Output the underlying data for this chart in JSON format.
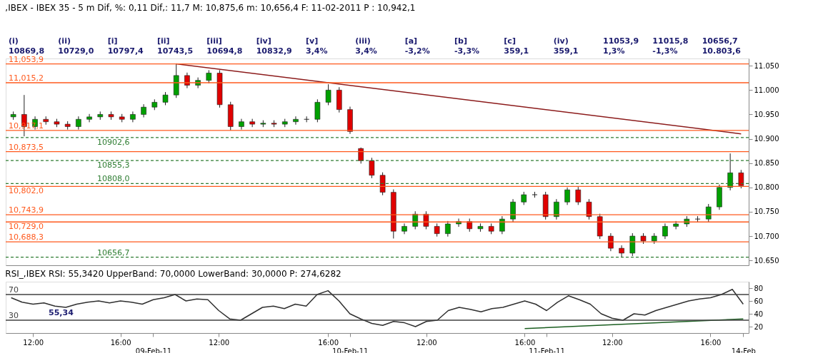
{
  "chart_data": [
    {
      "type": "candlestick",
      "title": ",IBEX - IBEX 35 -  5 m Dif, %: 0,11 Dif,: 11,7 M: 10,875,6 m: 10,656,4 F: 11-02-2011 P : 10,942,1",
      "categories": [
        null,
        null,
        null,
        null,
        null,
        null,
        null,
        null,
        null,
        null,
        null,
        null,
        null,
        null,
        null,
        null,
        null,
        null,
        null,
        null,
        null,
        null,
        null,
        null,
        null,
        null,
        null,
        null,
        null,
        null,
        null,
        null,
        null,
        null,
        null,
        null,
        null,
        null,
        null,
        null,
        null,
        null,
        null,
        null,
        null,
        null,
        null,
        null,
        null,
        null,
        null,
        null,
        null,
        null,
        null,
        null,
        null,
        null,
        null,
        null,
        null,
        null,
        null,
        null,
        null,
        null,
        null,
        null
      ],
      "ohlc": [
        [
          10945,
          10956,
          10939,
          10950
        ],
        [
          10950,
          10990,
          10905,
          10925
        ],
        [
          10925,
          10946,
          10919,
          10940
        ],
        [
          10940,
          10946,
          10929,
          10935
        ],
        [
          10935,
          10941,
          10924,
          10930
        ],
        [
          10930,
          10936,
          10919,
          10925
        ],
        [
          10925,
          10946,
          10919,
          10940
        ],
        [
          10940,
          10951,
          10934,
          10945
        ],
        [
          10945,
          10956,
          10939,
          10950
        ],
        [
          10950,
          10956,
          10939,
          10945
        ],
        [
          10945,
          10951,
          10934,
          10940
        ],
        [
          10940,
          10956,
          10934,
          10950
        ],
        [
          10950,
          10971,
          10944,
          10965
        ],
        [
          10965,
          10981,
          10959,
          10975
        ],
        [
          10975,
          10996,
          10969,
          10990
        ],
        [
          10990,
          11053.9,
          10984,
          11030
        ],
        [
          11030,
          11036,
          11004,
          11010
        ],
        [
          11010,
          11026,
          11004,
          11020
        ],
        [
          11020,
          11041,
          11014,
          11035
        ],
        [
          11035,
          11041,
          10964,
          10970
        ],
        [
          10970,
          10976,
          10917.1,
          10925
        ],
        [
          10925,
          10941,
          10919,
          10935
        ],
        [
          10935,
          10941,
          10924,
          10930
        ],
        [
          10930,
          10938,
          10924,
          10932
        ],
        [
          10932,
          10938,
          10924,
          10930
        ],
        [
          10930,
          10941,
          10924,
          10935
        ],
        [
          10935,
          10946,
          10929,
          10940
        ],
        [
          10940,
          10946,
          10934,
          10940
        ],
        [
          10940,
          10981,
          10934,
          10975
        ],
        [
          10975,
          11012,
          10969,
          11000
        ],
        [
          11000,
          11006,
          10954,
          10960
        ],
        [
          10960,
          10966,
          10910,
          10915
        ],
        [
          10880,
          10882,
          10849,
          10855
        ],
        [
          10855,
          10861,
          10819,
          10825
        ],
        [
          10825,
          10831,
          10784,
          10790
        ],
        [
          10790,
          10796,
          10695,
          10710
        ],
        [
          10710,
          10726,
          10704,
          10720
        ],
        [
          10720,
          10751,
          10714,
          10745
        ],
        [
          10745,
          10751,
          10714,
          10720
        ],
        [
          10720,
          10726,
          10699,
          10705
        ],
        [
          10705,
          10731,
          10699,
          10725
        ],
        [
          10725,
          10736,
          10719,
          10730
        ],
        [
          10730,
          10736,
          10709,
          10715
        ],
        [
          10715,
          10726,
          10709,
          10720
        ],
        [
          10720,
          10726,
          10704,
          10710
        ],
        [
          10710,
          10741,
          10704,
          10735
        ],
        [
          10735,
          10776,
          10729,
          10770
        ],
        [
          10770,
          10791,
          10764,
          10785
        ],
        [
          10785,
          10791,
          10779,
          10785
        ],
        [
          10785,
          10791,
          10734,
          10740
        ],
        [
          10740,
          10776,
          10734,
          10770
        ],
        [
          10770,
          10800,
          10764,
          10795
        ],
        [
          10795,
          10801,
          10764,
          10770
        ],
        [
          10770,
          10776,
          10734,
          10740
        ],
        [
          10740,
          10746,
          10694,
          10700
        ],
        [
          10700,
          10706,
          10669,
          10675
        ],
        [
          10675,
          10681,
          10656.7,
          10665
        ],
        [
          10665,
          10706,
          10659,
          10700
        ],
        [
          10700,
          10706,
          10684,
          10690
        ],
        [
          10690,
          10706,
          10684,
          10700
        ],
        [
          10700,
          10726,
          10694,
          10720
        ],
        [
          10720,
          10731,
          10714,
          10725
        ],
        [
          10725,
          10741,
          10719,
          10735
        ],
        [
          10735,
          10741,
          10729,
          10735
        ],
        [
          10735,
          10766,
          10729,
          10760
        ],
        [
          10760,
          10806,
          10754,
          10800
        ],
        [
          10800,
          10869.8,
          10794,
          10830
        ],
        [
          10830,
          10836,
          10798,
          10803.6
        ]
      ],
      "series": [
        {
          "type": "line",
          "color": "#8b1a1a",
          "values": [
            null,
            null,
            null,
            null,
            null,
            null,
            null,
            null,
            null,
            null,
            null,
            null,
            null,
            null,
            null,
            11053.9,
            null,
            null,
            null,
            null,
            null,
            null,
            null,
            null,
            null,
            null,
            null,
            null,
            null,
            null,
            null,
            null,
            null,
            null,
            null,
            null,
            null,
            null,
            null,
            null,
            null,
            null,
            null,
            null,
            null,
            null,
            null,
            null,
            null,
            null,
            null,
            null,
            null,
            null,
            null,
            null,
            null,
            null,
            null,
            null,
            null,
            null,
            null,
            null,
            null,
            null,
            null,
            10910
          ]
        }
      ],
      "ylim": [
        10640,
        11065
      ],
      "yticks": [
        {
          "value": 10650,
          "label": "10.650"
        },
        {
          "value": 10700,
          "label": "10.700"
        },
        {
          "value": 10750,
          "label": "10.750"
        },
        {
          "value": 10800,
          "label": "10.800"
        },
        {
          "value": 10850,
          "label": "10.850"
        },
        {
          "value": 10900,
          "label": "10.900"
        },
        {
          "value": 10950,
          "label": "10.950"
        },
        {
          "value": 11000,
          "label": "11.000"
        },
        {
          "value": 11050,
          "label": "11.050"
        }
      ],
      "tick_labels": "y",
      "ref_lines": [
        {
          "axis": "y",
          "value": 11053.9,
          "label": "11,053,9",
          "color": "#ff5a1e"
        },
        {
          "axis": "y",
          "value": 11015.2,
          "label": "11,015,2",
          "color": "#ff5a1e"
        },
        {
          "axis": "y",
          "value": 10917.1,
          "label": "10,917,1",
          "color": "#ff5a1e"
        },
        {
          "axis": "y",
          "value": 10873.5,
          "label": "10,873,5",
          "color": "#ff5a1e"
        },
        {
          "axis": "y",
          "value": 10802.0,
          "label": "10,802,0",
          "color": "#ff5a1e"
        },
        {
          "axis": "y",
          "value": 10743.9,
          "label": "10,743,9",
          "color": "#ff5a1e"
        },
        {
          "axis": "y",
          "value": 10729.0,
          "label": "10,729,0",
          "color": "#ff5a1e"
        },
        {
          "axis": "y",
          "value": 10688.3,
          "label": "10,688,3",
          "color": "#ff5a1e"
        },
        {
          "axis": "y",
          "value": 10902.6,
          "label": "10902,6",
          "color": "#2e7d32",
          "line_style": "dashed"
        },
        {
          "axis": "y",
          "value": 10855.3,
          "label": "10855,3",
          "color": "#2e7d32",
          "line_style": "dashed"
        },
        {
          "axis": "y",
          "value": 10808.0,
          "label": "10808,0",
          "color": "#2e7d32",
          "line_style": "dashed"
        },
        {
          "axis": "y",
          "value": 10656.7,
          "label": "10656,7",
          "color": "#2e7d32",
          "line_style": "dashed"
        }
      ],
      "annotations": [
        "(i)",
        "(ii)",
        "[i]",
        "[ii]",
        "[iii]",
        "[iv]",
        "[v]",
        "(iii)",
        "[a]",
        "[b]",
        "[c]",
        "(iv)",
        "11053,9",
        "11015,8",
        "10656,7",
        "10869,8",
        "10729,0",
        "10797,4",
        "10743,5",
        "10694,8",
        "10832,9",
        "3,4%",
        "3,4%",
        "-3,2%",
        "-3,3%",
        "359,1",
        "359,1",
        "1,3%",
        "-1,3%",
        "10.803,6"
      ]
    },
    {
      "type": "line",
      "title": "RSI_,IBEX RSI: 55,3420 UpperBand: 70,0000 LowerBand: 30,0000 P: 274,6282",
      "categories": [
        null,
        null,
        "12:00",
        null,
        null,
        null,
        null,
        null,
        null,
        null,
        "16:00",
        null,
        null,
        "09-Feb-11",
        null,
        null,
        null,
        null,
        null,
        "12:00",
        null,
        null,
        null,
        null,
        null,
        null,
        null,
        null,
        null,
        "16:00",
        null,
        "10-Feb-11",
        null,
        null,
        null,
        null,
        null,
        null,
        "12:00",
        null,
        null,
        null,
        null,
        null,
        null,
        null,
        null,
        "16:00",
        null,
        "11-Feb-11",
        null,
        null,
        null,
        null,
        null,
        "12:00",
        null,
        null,
        null,
        null,
        null,
        null,
        null,
        null,
        "16:00",
        null,
        null,
        "14-Feb"
      ],
      "series": [
        {
          "color": "#303030",
          "values": [
            65,
            58,
            55,
            57,
            52,
            50,
            55,
            58,
            60,
            57,
            60,
            58,
            55,
            62,
            65,
            70,
            60,
            63,
            62,
            45,
            32,
            30,
            40,
            50,
            52,
            48,
            55,
            52,
            70,
            76,
            60,
            40,
            32,
            25,
            22,
            28,
            26,
            20,
            28,
            30,
            45,
            50,
            47,
            43,
            48,
            50,
            55,
            60,
            55,
            45,
            58,
            68,
            62,
            55,
            40,
            33,
            30,
            40,
            38,
            45,
            50,
            55,
            60,
            63,
            65,
            70,
            78,
            55
          ]
        },
        {
          "color": "#1b5e20",
          "values": [
            null,
            null,
            null,
            null,
            null,
            null,
            null,
            null,
            null,
            null,
            null,
            null,
            null,
            null,
            null,
            null,
            null,
            null,
            null,
            null,
            null,
            null,
            null,
            null,
            null,
            null,
            null,
            null,
            null,
            null,
            null,
            null,
            null,
            null,
            null,
            null,
            null,
            null,
            null,
            null,
            null,
            null,
            null,
            null,
            null,
            null,
            null,
            17,
            null,
            null,
            null,
            null,
            null,
            null,
            null,
            null,
            null,
            null,
            null,
            null,
            null,
            null,
            null,
            null,
            null,
            null,
            null,
            32
          ]
        }
      ],
      "ylim": [
        10,
        90
      ],
      "yticks": [
        20,
        40,
        60,
        80
      ],
      "ref_lines": [
        {
          "axis": "y",
          "value": 70,
          "label": "70",
          "color": "#404040"
        },
        {
          "axis": "y",
          "value": 30,
          "label": "30",
          "color": "#404040"
        }
      ],
      "annotations": [
        "55,34"
      ]
    }
  ]
}
